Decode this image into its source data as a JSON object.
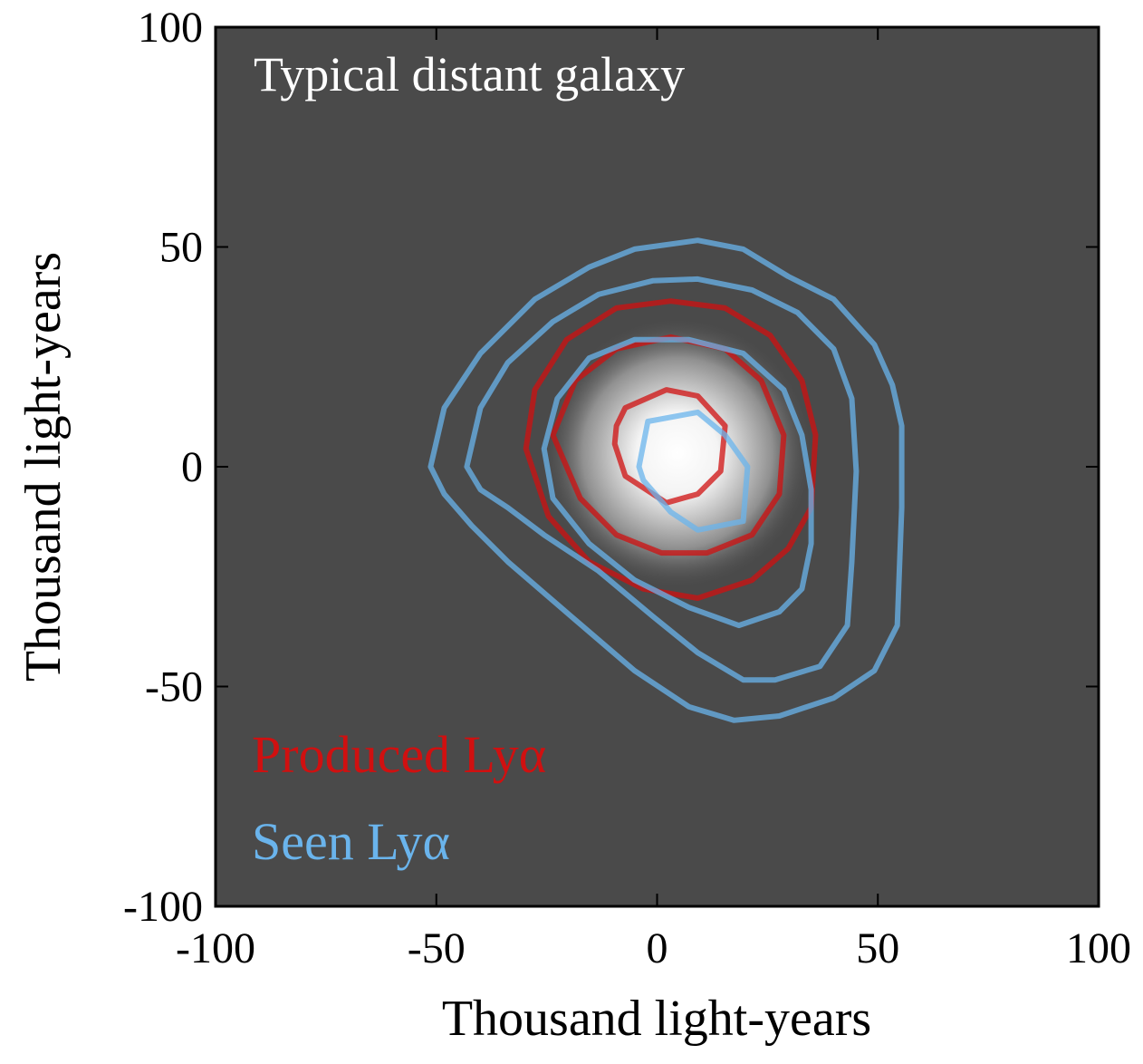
{
  "chart_data": {
    "type": "contour",
    "title": "Typical distant galaxy",
    "xlabel": "Thousand light-years",
    "ylabel": "Thousand light-years",
    "xlim": [
      -100,
      100
    ],
    "ylim": [
      -100,
      100
    ],
    "xticks": [
      -100,
      -50,
      0,
      50,
      100
    ],
    "yticks": [
      -100,
      -50,
      0,
      50,
      100
    ],
    "background": "#4a4a4a",
    "legend": "lower left",
    "series": [
      {
        "name": "Produced Lyα",
        "color": "#d01010",
        "contours": [
          {
            "x": [
              -29.7,
              -27.7,
              -20.5,
              -9.2,
              3.1,
              15.4,
              25.6,
              32.8,
              35.9,
              34.9,
              29.7,
              21.5,
              9.2,
              -3.1,
              -15.4,
              -24.6
            ],
            "y": [
              4.1,
              17.5,
              28.9,
              36.1,
              37.7,
              36.1,
              29.9,
              19.6,
              7.2,
              -9.3,
              -18.6,
              -25.8,
              -29.9,
              -27.8,
              -21.6,
              -11.3
            ]
          },
          {
            "x": [
              -23.6,
              -18.5,
              -9.2,
              3.1,
              15.4,
              23.6,
              28.7,
              27.7,
              21.5,
              11.3,
              1,
              -9.2,
              -17.4
            ],
            "y": [
              7.2,
              19.6,
              26.8,
              29.5,
              26.8,
              19.6,
              7.2,
              -6.2,
              -15.5,
              -19.6,
              -19.6,
              -15.5,
              -7.2
            ]
          },
          {
            "x": [
              -9.2,
              -7.2,
              2.1,
              9.2,
              15.4,
              14.4,
              9.2,
              2.1,
              -7.2,
              -9.6
            ],
            "y": [
              9.3,
              13.4,
              17.5,
              16.1,
              9.3,
              -1,
              -6.2,
              -8.2,
              -2.1,
              5.2
            ]
          }
        ]
      },
      {
        "name": "Seen Lyα",
        "color": "#6ab4ec",
        "contours": [
          {
            "x": [
              -51.3,
              -48.2,
              -40,
              -27.7,
              -15.4,
              -5.1,
              9.2,
              19.5,
              29.7,
              40,
              49.2,
              53.3,
              55.4,
              55.4,
              54.4,
              49.2,
              40,
              27.7,
              17.4,
              7.2,
              -5.1,
              -19.5,
              -33.8,
              -42,
              -48.2
            ],
            "y": [
              0,
              13.4,
              25.8,
              38.1,
              45.4,
              49.5,
              51.5,
              49.5,
              43.3,
              38.1,
              27.8,
              18.6,
              9.3,
              -9.3,
              -36.1,
              -46.4,
              -52.6,
              -56.7,
              -57.7,
              -54.6,
              -46.4,
              -34,
              -21.6,
              -13.4,
              -6.2
            ]
          },
          {
            "x": [
              -43.1,
              -40,
              -33.8,
              -23.6,
              -13.3,
              -1,
              9.2,
              21.5,
              31.8,
              40,
              44.1,
              45.1,
              44.1,
              43.1,
              36.9,
              26.7,
              19.5,
              9.2,
              -1,
              -13.3,
              -25.6,
              -33.8,
              -40
            ],
            "y": [
              0,
              13.4,
              23.7,
              33,
              39.2,
              42.3,
              42.7,
              40.2,
              35.1,
              26.8,
              15.5,
              -1,
              -21.6,
              -36.1,
              -45.4,
              -48.5,
              -48.5,
              -42.3,
              -34,
              -23.7,
              -15.5,
              -9.3,
              -5.2
            ]
          },
          {
            "x": [
              -25.6,
              -22.6,
              -15.4,
              -5.1,
              7.2,
              19.5,
              28.7,
              32.8,
              34.9,
              34.9,
              32.8,
              27.7,
              18.5,
              7.2,
              -5.1,
              -15.4,
              -23.6
            ],
            "y": [
              4.1,
              15.5,
              24.7,
              28.9,
              28.9,
              25.8,
              17.5,
              7.2,
              -5.2,
              -17.5,
              -27.8,
              -33,
              -36.1,
              -32,
              -25.8,
              -17.5,
              -7.2
            ]
          },
          {
            "x": [
              -4.1,
              -2.1,
              9.2,
              15.4,
              20.5,
              19.5,
              9.2,
              3.1,
              -3.1
            ],
            "y": [
              0,
              10.3,
              12.4,
              7.2,
              0,
              -12.4,
              -14.4,
              -10.3,
              -3.1
            ]
          }
        ]
      }
    ]
  }
}
